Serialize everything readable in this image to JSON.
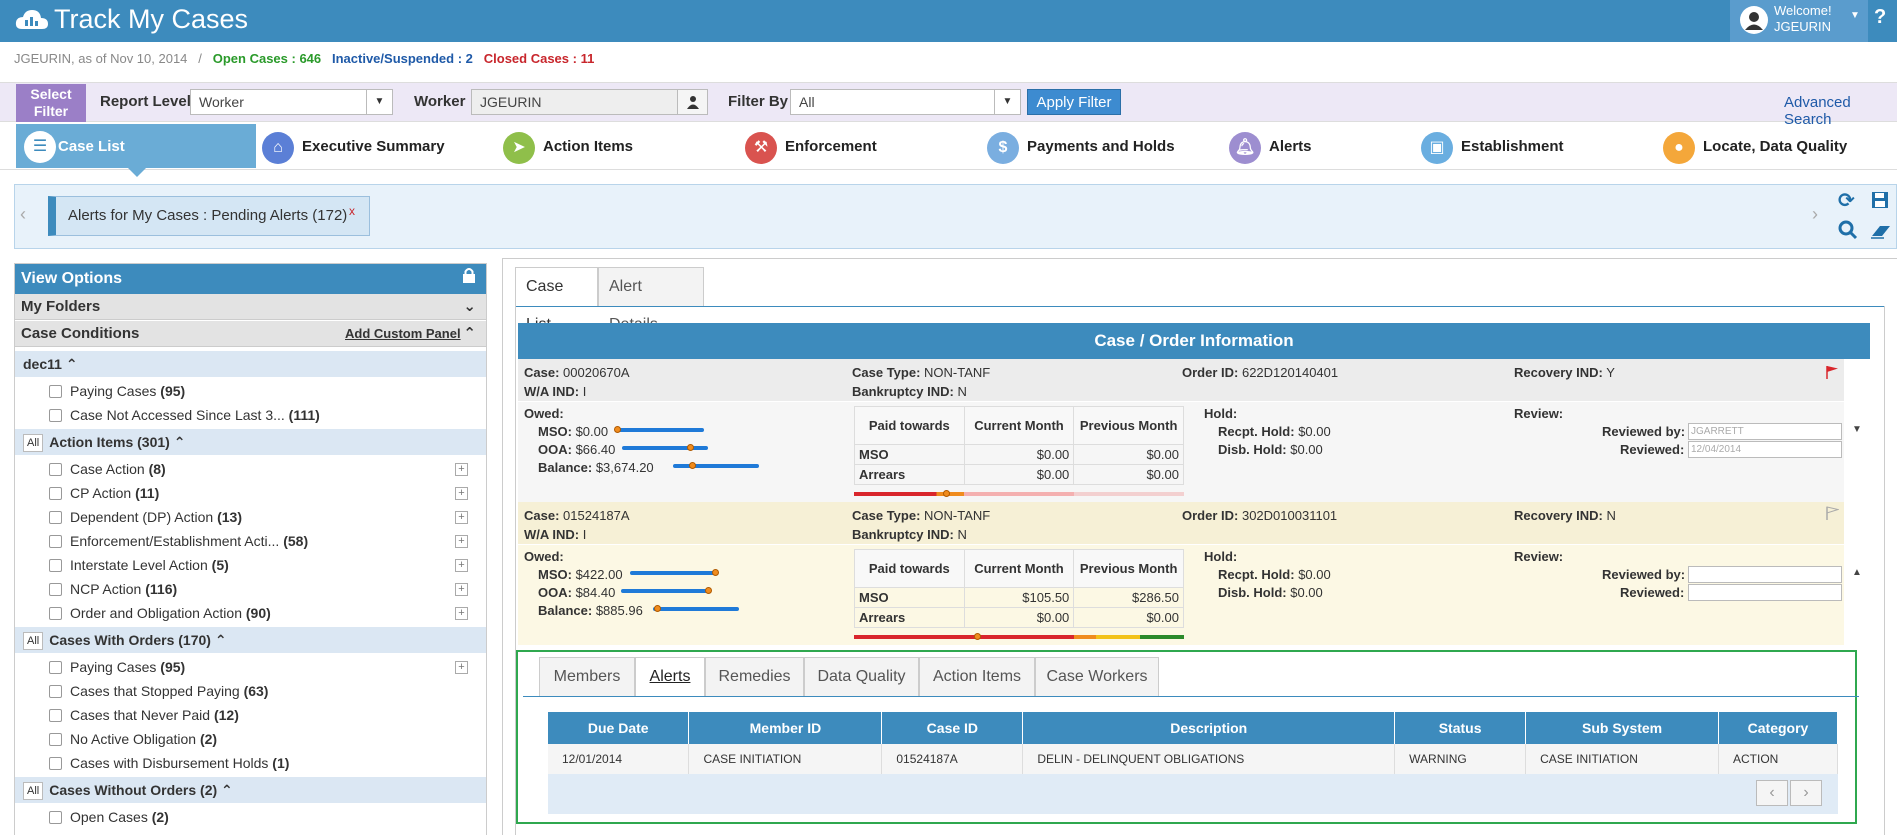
{
  "app": {
    "title": "Track My Cases"
  },
  "user": {
    "welcome": "Welcome!",
    "name": "JGEURIN"
  },
  "help": "?",
  "stats": {
    "prefix": "JGEURIN, as of Nov 10, 2014",
    "separator": "/",
    "open_label": "Open Cases :",
    "open_value": "646",
    "inactive_label": "Inactive/Suspended :",
    "inactive_value": "2",
    "closed_label": "Closed Cases :",
    "closed_value": "11"
  },
  "filter": {
    "select_filter": "Select Filter",
    "report_level_label": "Report Level",
    "report_level_value": "Worker",
    "worker_label": "Worker",
    "worker_value": "JGEURIN",
    "filter_by_label": "Filter By",
    "filter_by_value": "All",
    "apply": "Apply Filter",
    "advanced_search": "Advanced Search"
  },
  "nav": [
    {
      "label": "Case List",
      "icon": "list-icon",
      "color": "#ffffff"
    },
    {
      "label": "Executive Summary",
      "icon": "home-icon",
      "color": "#5b7fd6"
    },
    {
      "label": "Action Items",
      "icon": "send-icon",
      "color": "#8fbf4a"
    },
    {
      "label": "Enforcement",
      "icon": "gavel-icon",
      "color": "#d9534f"
    },
    {
      "label": "Payments and Holds",
      "icon": "money-icon",
      "color": "#7aaee0"
    },
    {
      "label": "Alerts",
      "icon": "bell-icon",
      "color": "#9d8ed0"
    },
    {
      "label": "Establishment",
      "icon": "briefcase-icon",
      "color": "#6aaee0"
    },
    {
      "label": "Locate, Data Quality",
      "icon": "map-pin-icon",
      "color": "#f4a73a"
    }
  ],
  "alert_chip": {
    "label": "Alerts for My Cases : Pending Alerts (172)",
    "close": "x"
  },
  "left_panel": {
    "title": "View Options",
    "my_folders": "My Folders",
    "case_conditions": "Case Conditions",
    "add_custom_panel": "Add Custom Panel",
    "all": "All",
    "dec11": {
      "label": "dec11",
      "items": [
        {
          "label": "Paying Cases",
          "count": "(95)"
        },
        {
          "label": "Case Not Accessed Since Last 3...",
          "count": "(111)"
        }
      ]
    },
    "action_items": {
      "label": "Action Items (301)",
      "items": [
        {
          "label": "Case Action",
          "count": "(8)"
        },
        {
          "label": "CP Action",
          "count": "(11)"
        },
        {
          "label": "Dependent (DP) Action",
          "count": "(13)"
        },
        {
          "label": "Enforcement/Establishment Acti...",
          "count": "(58)"
        },
        {
          "label": "Interstate Level Action",
          "count": "(5)"
        },
        {
          "label": "NCP Action",
          "count": "(116)"
        },
        {
          "label": "Order and Obligation Action",
          "count": "(90)"
        }
      ]
    },
    "cases_with_orders": {
      "label": "Cases With Orders (170)",
      "items": [
        {
          "label": "Paying Cases",
          "count": "(95)"
        },
        {
          "label": "Cases that Stopped Paying",
          "count": "(63)"
        },
        {
          "label": "Cases that Never Paid",
          "count": "(12)"
        },
        {
          "label": "No Active Obligation",
          "count": "(2)"
        },
        {
          "label": "Cases with Disbursement Holds",
          "count": "(1)"
        }
      ]
    },
    "cases_without_orders": {
      "label": "Cases Without Orders (2)",
      "items": [
        {
          "label": "Open Cases",
          "count": "(2)"
        }
      ]
    }
  },
  "main_tabs": [
    "Case List",
    "Alert Details"
  ],
  "case_order": {
    "title": "Case / Order Information",
    "labels": {
      "case": "Case:",
      "wa_ind": "W/A IND:",
      "case_type": "Case Type:",
      "bankruptcy": "Bankruptcy IND:",
      "order_id": "Order ID:",
      "recovery": "Recovery IND:",
      "owed": "Owed:",
      "mso": "MSO:",
      "ooa": "OOA:",
      "balance": "Balance:",
      "paid_towards": "Paid towards",
      "current_month": "Current Month",
      "previous_month": "Previous Month",
      "mso_row": "MSO",
      "arrears_row": "Arrears",
      "hold": "Hold:",
      "recpt_hold": "Recpt. Hold:",
      "disb_hold": "Disb. Hold:",
      "review": "Review:",
      "reviewed_by": "Reviewed by:",
      "reviewed": "Reviewed:"
    },
    "cases": [
      {
        "case": "00020670A",
        "wa_ind": "I",
        "case_type": "NON-TANF",
        "bankruptcy": "N",
        "order_id": "622D120140401",
        "recovery": "Y",
        "mso": "$0.00",
        "ooa": "$66.40",
        "balance": "$3,674.20",
        "mso_cur": "$0.00",
        "mso_prev": "$0.00",
        "arr_cur": "$0.00",
        "arr_prev": "$0.00",
        "recpt_hold": "$0.00",
        "disb_hold": "$0.00",
        "reviewed_by": "JGARRETT",
        "reviewed": "12/04/2014",
        "flag_color": "#d9262c",
        "bar_fills": [
          0.0,
          0.76,
          0.44
        ]
      },
      {
        "case": "01524187A",
        "wa_ind": "I",
        "case_type": "NON-TANF",
        "bankruptcy": "N",
        "order_id": "302D010031101",
        "recovery": "N",
        "mso": "$422.00",
        "ooa": "$84.40",
        "balance": "$885.96",
        "mso_cur": "$105.50",
        "mso_prev": "$286.50",
        "arr_cur": "$0.00",
        "arr_prev": "$0.00",
        "recpt_hold": "$0.00",
        "disb_hold": "$0.00",
        "reviewed_by": "",
        "reviewed": "",
        "flag_color": "#bbbbbb",
        "bar_fills": [
          1.0,
          1.0,
          0.0
        ]
      }
    ]
  },
  "sub_tabs": [
    "Members",
    "Alerts",
    "Remedies",
    "Data Quality",
    "Action Items",
    "Case Workers"
  ],
  "alerts_table": {
    "headers": [
      "Due Date",
      "Member ID",
      "Case ID",
      "Description",
      "Status",
      "Sub System",
      "Category"
    ],
    "rows": [
      [
        "12/01/2014",
        "CASE INITIATION",
        "01524187A",
        "DELIN - DELINQUENT OBLIGATIONS",
        "WARNING",
        "CASE INITIATION",
        "ACTION"
      ]
    ]
  }
}
